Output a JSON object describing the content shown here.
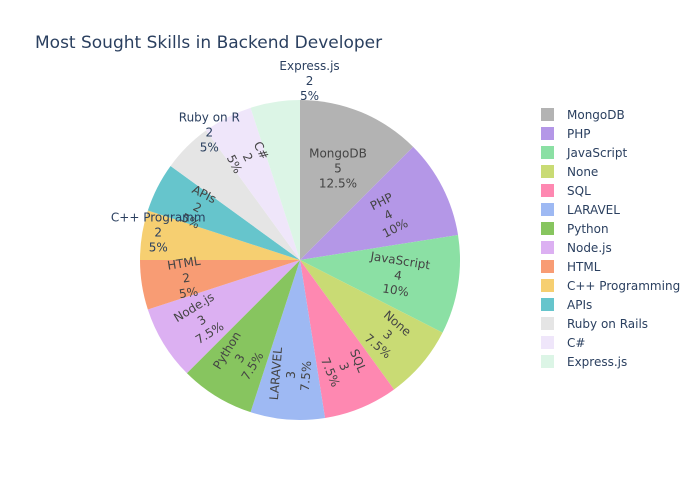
{
  "chart_data": {
    "type": "pie",
    "title": "Most Sought Skills in Backend Developer",
    "slices": [
      {
        "label": "MongoDB",
        "value": 5,
        "percent": "12.5%",
        "color": "#b3b3b3"
      },
      {
        "label": "PHP",
        "value": 4,
        "percent": "10%",
        "color": "#b497e7"
      },
      {
        "label": "JavaScript",
        "value": 4,
        "percent": "10%",
        "color": "#8be0a4"
      },
      {
        "label": "None",
        "value": 3,
        "percent": "7.5%",
        "color": "#c9db74"
      },
      {
        "label": "SQL",
        "value": 3,
        "percent": "7.5%",
        "color": "#fe88b1"
      },
      {
        "label": "LARAVEL",
        "value": 3,
        "percent": "7.5%",
        "color": "#9eb9f3"
      },
      {
        "label": "Python",
        "value": 3,
        "percent": "7.5%",
        "color": "#87c55f"
      },
      {
        "label": "Node.js",
        "value": 3,
        "percent": "7.5%",
        "color": "#dcb0f2"
      },
      {
        "label": "HTML",
        "value": 2,
        "percent": "5%",
        "color": "#f89c74"
      },
      {
        "label": "C++ Programming",
        "value": 2,
        "percent": "5%",
        "color": "#f6cf71"
      },
      {
        "label": "APIs",
        "value": 2,
        "percent": "5%",
        "color": "#66c5cc"
      },
      {
        "label": "Ruby on Rails",
        "value": 2,
        "percent": "5%",
        "color": "#e5e5e5"
      },
      {
        "label": "C#",
        "value": 2,
        "percent": "5%",
        "color": "#efe6fa"
      },
      {
        "label": "Express.js",
        "value": 2,
        "percent": "5%",
        "color": "#dcf5e6"
      }
    ],
    "outside_labels": {
      "Express.js": "Express.js",
      "Ruby on Rails": "Ruby on R",
      "C++ Programming": "C++ Programm"
    },
    "legend_position": "right",
    "direction": "clockwise",
    "start": "top"
  }
}
